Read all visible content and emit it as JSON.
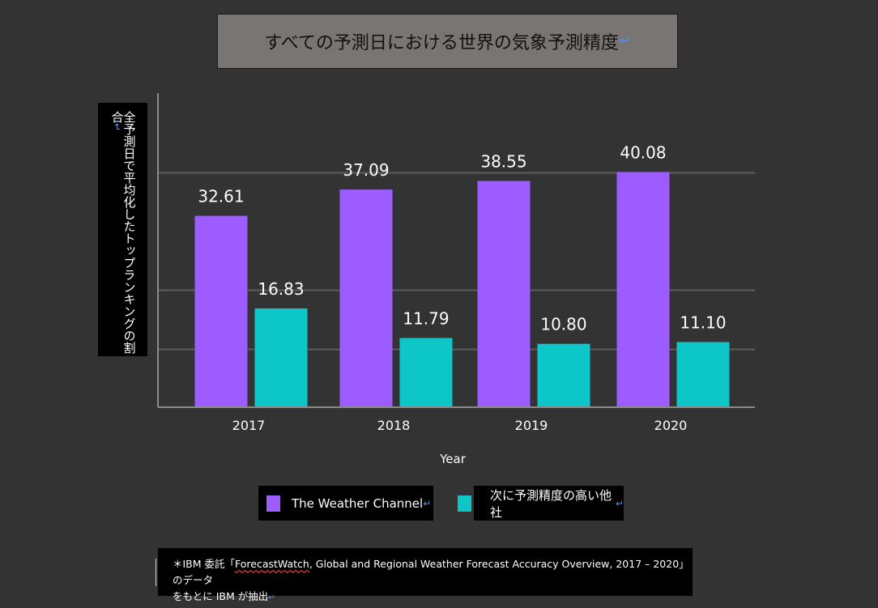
{
  "title": "すべての予測日における世界の気象予測精度",
  "return_mark": "↵",
  "ylabel": "全予測日で平均化したトップランキングの割合",
  "legend": [
    {
      "label": "The Weather Channel",
      "color": "#9c5cff"
    },
    {
      "label": "次に予測精度の高い他社",
      "color": "#0cc6c8"
    }
  ],
  "footnote": {
    "line1_prefix": "＊IBM 委託「",
    "line1_underlined": "ForecastWatch",
    "line1_suffix": ", Global and Regional Weather Forecast Accuracy Overview, 2017 – 2020」のデータ",
    "line2": "をもとに IBM が抽出"
  },
  "chart_data": {
    "type": "bar",
    "categories": [
      "2017",
      "2018",
      "2019",
      "2020"
    ],
    "series": [
      {
        "name": "The Weather Channel",
        "values": [
          32.61,
          37.09,
          38.55,
          40.08
        ],
        "labels": [
          "32.61",
          "37.09",
          "38.55",
          "40.08"
        ],
        "color": "#9c5cff"
      },
      {
        "name": "次に予測精度の高い他社",
        "values": [
          16.83,
          11.79,
          10.8,
          11.1
        ],
        "labels": [
          "16.83",
          "11.79",
          "10.80",
          "11.10"
        ],
        "color": "#0cc6c8"
      }
    ],
    "xlabel": "Year",
    "ylabel": "全予測日で平均化したトップランキングの割合",
    "ylim": [
      0,
      45
    ],
    "grid": true,
    "legend_position": "bottom"
  }
}
